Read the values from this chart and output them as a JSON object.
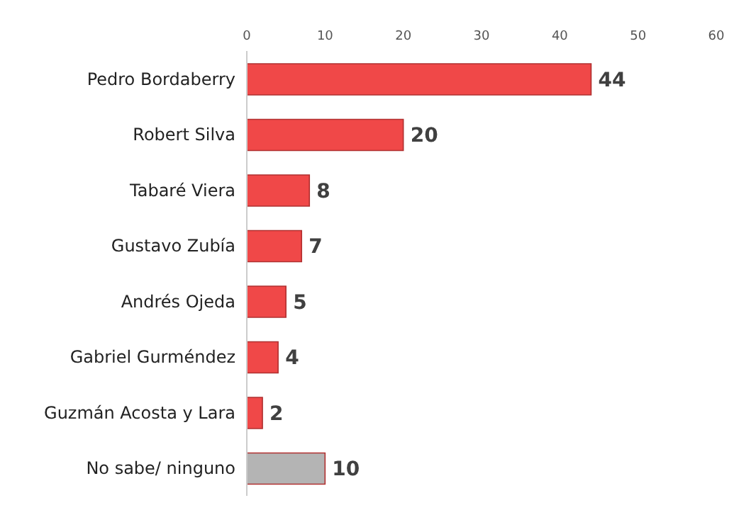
{
  "chart_data": {
    "type": "bar",
    "orientation": "horizontal",
    "categories": [
      "Pedro Bordaberry",
      "Robert Silva",
      "Tabaré Viera",
      "Gustavo Zubía",
      "Andrés Ojeda",
      "Gabriel Gurméndez",
      "Guzmán Acosta y Lara",
      "No sabe/ ninguno"
    ],
    "values": [
      44,
      20,
      8,
      7,
      5,
      4,
      2,
      10
    ],
    "colors": [
      "#f04848",
      "#f04848",
      "#f04848",
      "#f04848",
      "#f04848",
      "#f04848",
      "#f04848",
      "#b4b4b4"
    ],
    "xlim": [
      0,
      60
    ],
    "xticks": [
      0,
      10,
      20,
      30,
      40,
      50,
      60
    ],
    "data_labels": true
  }
}
